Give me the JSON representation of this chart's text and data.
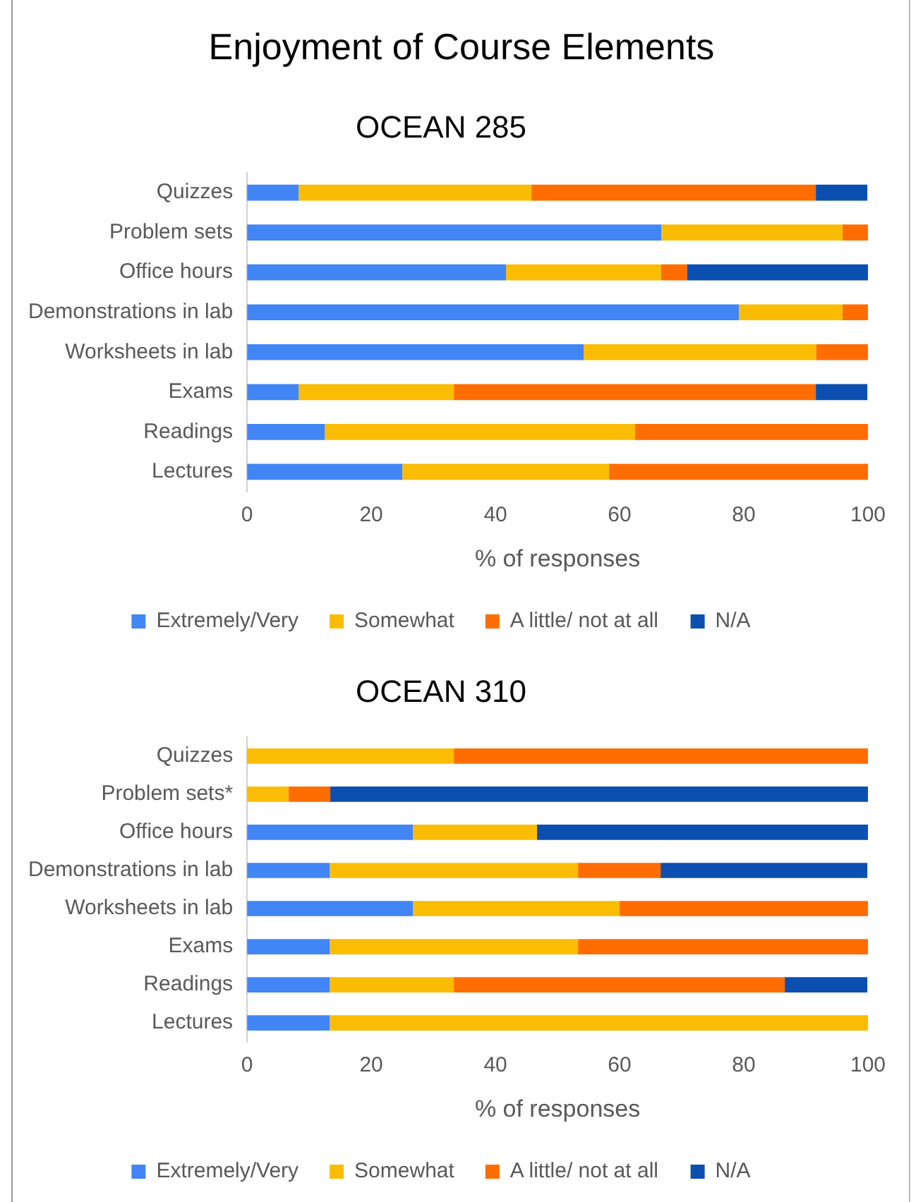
{
  "chart_data": [
    {
      "type": "bar",
      "title": "Enjoyment of Course Elements",
      "subtitle": "OCEAN 285",
      "orientation": "horizontal",
      "stacked": true,
      "xlabel": "% of responses",
      "categories": [
        "Quizzes",
        "Problem sets",
        "Office hours",
        "Demonstrations in lab",
        "Worksheets in lab",
        "Exams",
        "Readings",
        "Lectures"
      ],
      "xlim": [
        0,
        100
      ],
      "xticks": [
        0,
        20,
        40,
        60,
        80,
        100
      ],
      "grid": false,
      "legend": "bottom",
      "series": [
        {
          "name": "Extremely/Very",
          "color": "#4285f4",
          "values": [
            8.3,
            66.7,
            41.7,
            79.2,
            54.2,
            8.3,
            12.5,
            25
          ]
        },
        {
          "name": "Somewhat",
          "color": "#fbbc04",
          "values": [
            37.5,
            29.2,
            25,
            16.7,
            37.5,
            25,
            50,
            33.3
          ]
        },
        {
          "name": "A little/ not at all",
          "color": "#ff6d01",
          "values": [
            45.8,
            4.2,
            4.2,
            4.2,
            8.3,
            58.3,
            37.5,
            41.7
          ]
        },
        {
          "name": "N/A",
          "color": "#0b4fb0",
          "values": [
            8.3,
            0,
            29.2,
            0,
            0,
            8.3,
            0,
            0
          ]
        }
      ]
    },
    {
      "type": "bar",
      "title": "OCEAN 310",
      "orientation": "horizontal",
      "stacked": true,
      "xlabel": "% of responses",
      "categories": [
        "Quizzes",
        "Problem sets*",
        "Office hours",
        "Demonstrations in lab",
        "Worksheets in lab",
        "Exams",
        "Readings",
        "Lectures"
      ],
      "xlim": [
        0,
        100
      ],
      "xticks": [
        0,
        20,
        40,
        60,
        80,
        100
      ],
      "grid": false,
      "legend": "bottom",
      "series": [
        {
          "name": "Extremely/Very",
          "color": "#4285f4",
          "values": [
            0,
            0,
            26.7,
            13.3,
            26.7,
            13.3,
            13.3,
            13.3
          ]
        },
        {
          "name": "Somewhat",
          "color": "#fbbc04",
          "values": [
            33.3,
            6.7,
            20,
            40,
            33.3,
            40,
            20,
            86.7
          ]
        },
        {
          "name": "A little/ not at all",
          "color": "#ff6d01",
          "values": [
            66.7,
            6.7,
            0,
            13.3,
            40,
            46.7,
            53.3,
            0
          ]
        },
        {
          "name": "N/A",
          "color": "#0b4fb0",
          "values": [
            0,
            86.7,
            53.3,
            33.3,
            0,
            0,
            13.3,
            0
          ]
        }
      ]
    }
  ]
}
